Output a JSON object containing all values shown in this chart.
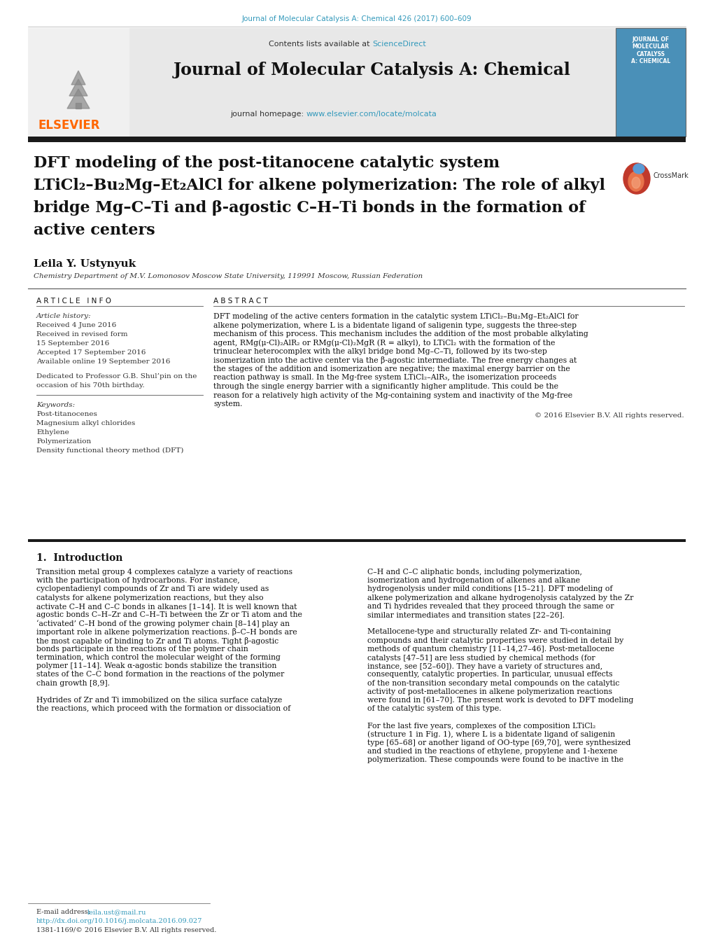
{
  "page_bg": "#ffffff",
  "top_journal_ref": "Journal of Molecular Catalysis A: Chemical 426 (2017) 600–609",
  "top_journal_ref_color": "#3399bb",
  "link_color": "#3399bb",
  "header_bg": "#e8e8e8",
  "header_text": "Journal of Molecular Catalysis A: Chemical",
  "header_subtext1": "Contents lists available at ",
  "header_subtext1_link": "ScienceDirect",
  "header_subtext2": "journal homepage: ",
  "header_subtext2_link": "www.elsevier.com/locate/molcata",
  "title_line1": "DFT modeling of the post-titanocene catalytic system",
  "title_line2": "LTiCl₂–Bu₂Mg–Et₂AlCl for alkene polymerization: The role of alkyl",
  "title_line3": "bridge Mg–C–Ti and β-agostic C–H–Ti bonds in the formation of",
  "title_line4": "active centers",
  "author": "Leila Y. Ustynyuk",
  "affiliation": "Chemistry Department of M.V. Lomonosov Moscow State University, 119991 Moscow, Russian Federation",
  "section_article_info": "A R T I C L E   I N F O",
  "section_abstract": "A B S T R A C T",
  "article_history_label": "Article history:",
  "article_history": [
    "Received 4 June 2016",
    "Received in revised form",
    "15 September 2016",
    "Accepted 17 September 2016",
    "Available online 19 September 2016"
  ],
  "dedication": "Dedicated to Professor G.B. Shul’pin on the\noccasion of his 70th birthday.",
  "keywords_label": "Keywords:",
  "keywords": [
    "Post-titanocenes",
    "Magnesium alkyl chlorides",
    "Ethylene",
    "Polymerization",
    "Density functional theory method (DFT)"
  ],
  "abstract_text": "DFT modeling of the active centers formation in the catalytic system LTiCl₂–Bu₂Mg–Et₂AlCl for alkene polymerization, where L is a bidentate ligand of saligenin type, suggests the three-step mechanism of this process. This mechanism includes the addition of the most probable alkylating agent, RMg(μ-Cl)₂AlR₂ or RMg(μ-Cl)₂MgR (R = alkyl), to LTiCl₂ with the formation of the trinuclear heterocomplex with the alkyl bridge bond Mg–C–Ti, followed by its two-step isomerization into the active center via the β-agostic intermediate. The free energy changes at the stages of the addition and isomerization are negative; the maximal energy barrier on the reaction pathway is small. In the Mg-free system LTiCl₂–AlR₃, the isomerization proceeds through the single energy barrier with a significantly higher amplitude. This could be the reason for a relatively high activity of the Mg-containing system and inactivity of the Mg-free system.",
  "copyright": "© 2016 Elsevier B.V. All rights reserved.",
  "intro_heading": "1.  Introduction",
  "intro_col1": "    Transition metal group 4 complexes catalyze a variety of reactions with the participation of hydrocarbons. For instance, cyclopentadienyl compounds of Zr and Ti are widely used as catalysts for alkene polymerization reactions, but they also activate C–H and C–C bonds in alkanes [1–14]. It is well known that agostic bonds C–H–Zr and C–H–Ti between the Zr or Ti atom and the ‘activated’ C–H bond of the growing polymer chain [8–14] play an important role in alkene polymerization reactions. β–C–H bonds are the most capable of binding to Zr and Ti atoms. Tight β-agostic bonds participate in the reactions of the polymer chain termination, which control the molecular weight of the forming polymer [11–14]. Weak α-agostic bonds stabilize the transition states of the C–C bond formation in the reactions of the polymer chain growth [8,9].\n\n    Hydrides of Zr and Ti immobilized on the silica surface catalyze the reactions, which proceed with the formation or dissociation of",
  "intro_col2": "C–H and C–C aliphatic bonds, including polymerization, isomerization and hydrogenation of alkenes and alkane hydrogenolysis under mild conditions [15–21]. DFT modeling of alkene polymerization and alkane hydrogenolysis catalyzed by the Zr and Ti hydrides revealed that they proceed through the same or similar intermediates and transition states [22–26].\n\n    Metallocene-type and structurally related Zr- and Ti-containing compounds and their catalytic properties were studied in detail by methods of quantum chemistry [11–14,27–46]. Post-metallocene catalysts [47–51] are less studied by chemical methods (for instance, see [52–60]). They have a variety of structures and, consequently, catalytic properties. In particular, unusual effects of the non-transition secondary metal compounds on the catalytic activity of post-metallocenes in alkene polymerization reactions were found in [61–70]. The present work is devoted to DFT modeling of the catalytic system of this type.\n\n    For the last five years, complexes of the composition LTiCl₂ (structure 1 in Fig. 1), where L is a bidentate ligand of saligenin type [65–68] or another ligand of OO-type [69,70], were synthesized and studied in the reactions of ethylene, propylene and 1-hexene polymerization. These compounds were found to be inactive in the",
  "footer_email_label": "E-mail address: ",
  "footer_email": "leila.ust@mail.ru",
  "footer_doi": "http://dx.doi.org/10.1016/j.molcata.2016.09.027",
  "footer_issn": "1381-1169/© 2016 Elsevier B.V. All rights reserved.",
  "elsevier_color": "#ff6600",
  "cover_bg": "#4a90b8"
}
